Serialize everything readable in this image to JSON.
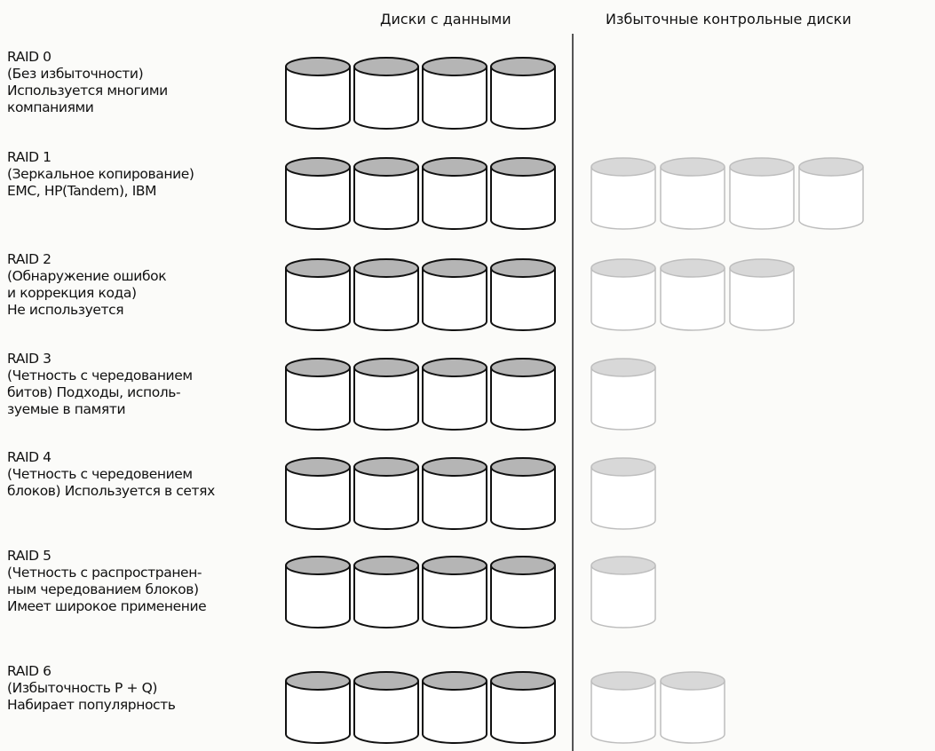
{
  "headers": {
    "data_disks": "Диски с данными",
    "check_disks": "Избыточные контрольные диски"
  },
  "colors": {
    "data_disk_stroke": "#111111",
    "data_disk_top": "#b5b5b5",
    "check_disk_stroke": "#bdbdbd",
    "check_disk_top": "#d8d8d8"
  },
  "levels": [
    {
      "title": "RAID 0",
      "lines": [
        "(Без избыточности)",
        "Используется многими",
        "компаниями"
      ],
      "data_disks": 4,
      "check_disks": 0
    },
    {
      "title": "RAID 1",
      "lines": [
        "(Зеркальное копирование)",
        "EMC, HP(Tandem), IBM"
      ],
      "data_disks": 4,
      "check_disks": 4
    },
    {
      "title": "RAID 2",
      "lines": [
        "(Обнаружение ошибок",
        "и коррекция кода)",
        "Не используется"
      ],
      "data_disks": 4,
      "check_disks": 3
    },
    {
      "title": "RAID 3",
      "lines": [
        "(Четность с чередованием",
        "битов) Подходы, исполь-",
        "зуемые в памяти"
      ],
      "data_disks": 4,
      "check_disks": 1
    },
    {
      "title": "RAID 4",
      "lines": [
        "(Четность с чередовением",
        "блоков) Используется в сетях"
      ],
      "data_disks": 4,
      "check_disks": 1
    },
    {
      "title": "RAID 5",
      "lines": [
        "(Четность с распространен-",
        "ным чередованием блоков)",
        "Имеет широкое применение"
      ],
      "data_disks": 4,
      "check_disks": 1
    },
    {
      "title": "RAID 6",
      "lines": [
        "(Избыточность P + Q)",
        "Набирает популярность"
      ],
      "data_disks": 4,
      "check_disks": 2
    }
  ]
}
